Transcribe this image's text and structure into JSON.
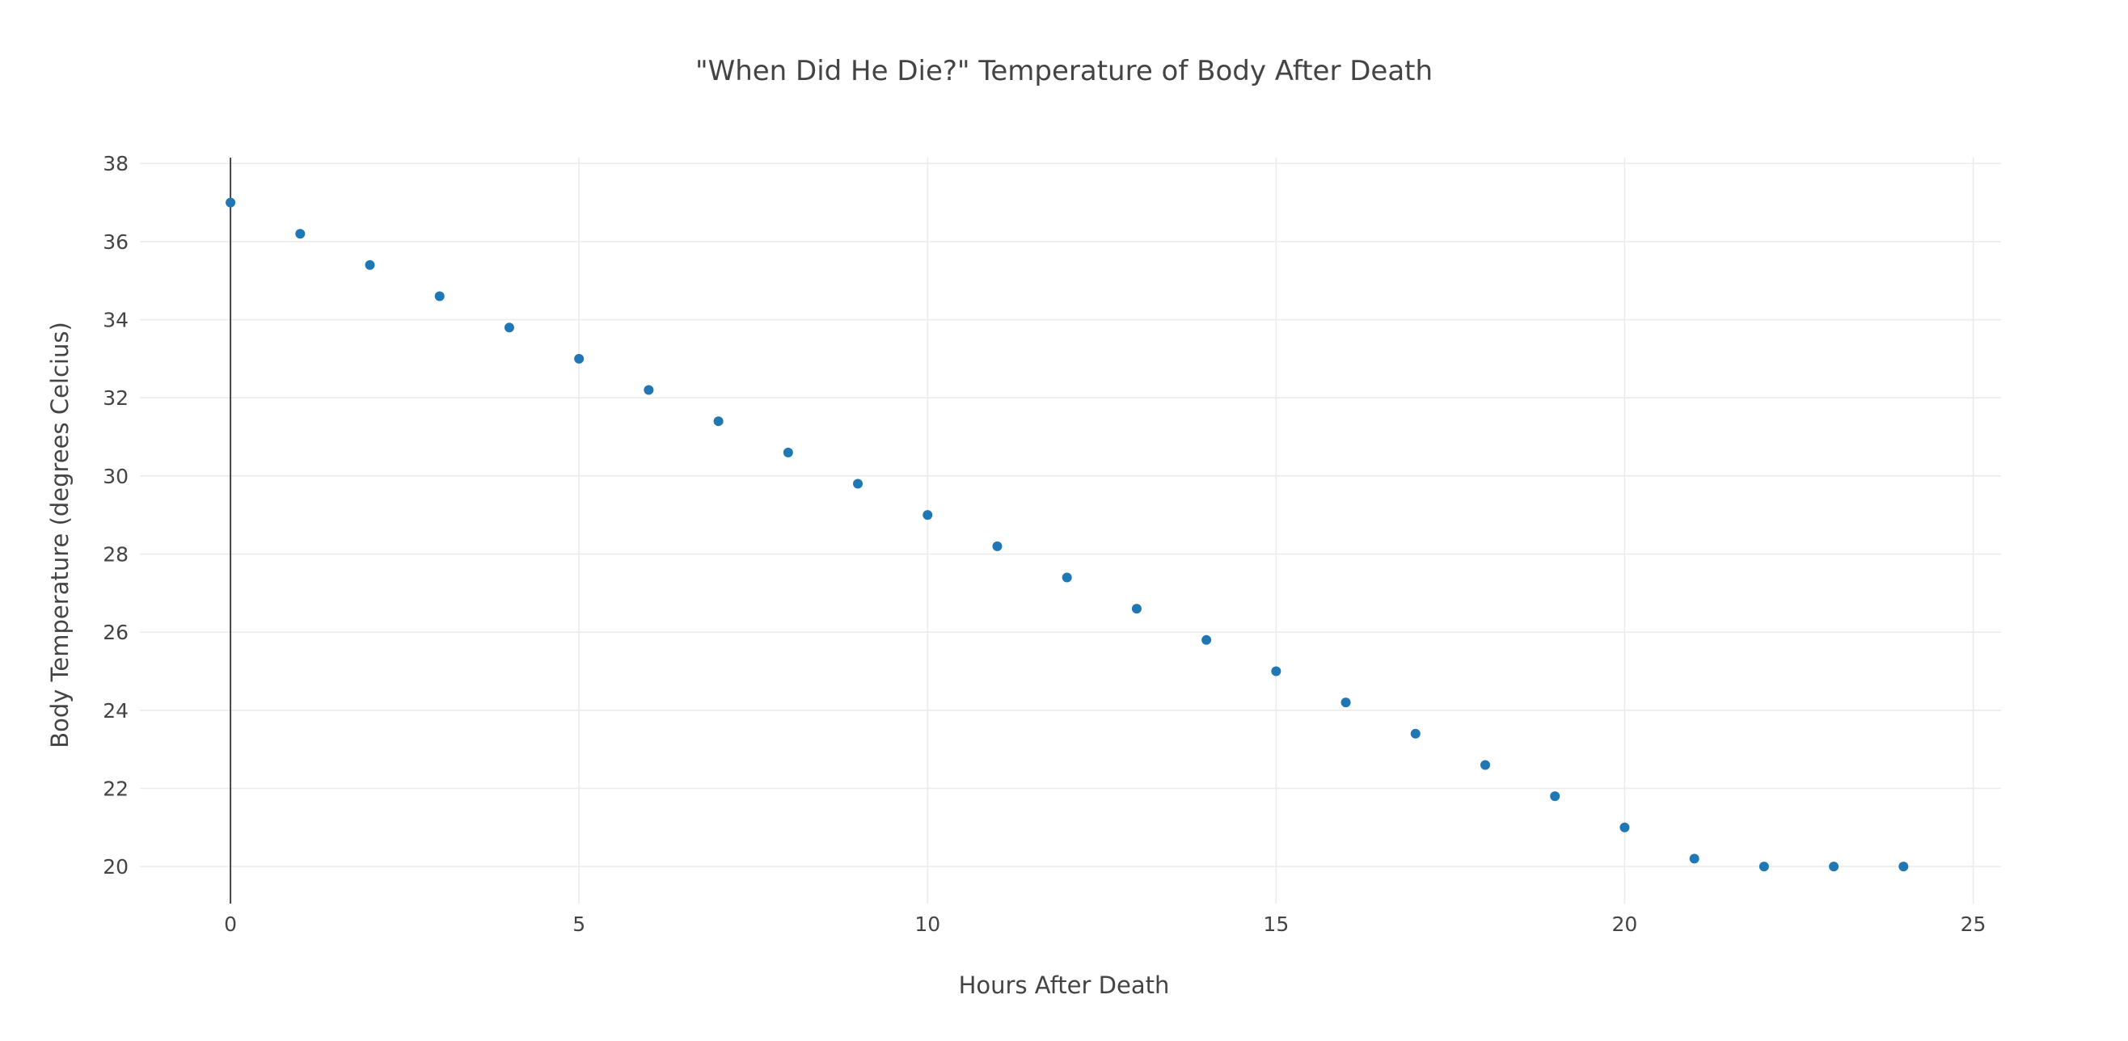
{
  "chart_data": {
    "type": "scatter",
    "title": "\"When Did He Die?\" Temperature of Body After Death",
    "xlabel": "Hours After Death",
    "ylabel": "Body Temperature (degrees Celcius)",
    "xlim": [
      -1.3,
      25.4
    ],
    "ylim": [
      19.05,
      38.15
    ],
    "xticks": [
      0,
      5,
      10,
      15,
      20,
      25
    ],
    "yticks": [
      20,
      22,
      24,
      26,
      28,
      30,
      32,
      34,
      36,
      38
    ],
    "grid": true,
    "series_color": "#1f77b4",
    "series": [
      {
        "x": [
          0,
          1,
          2,
          3,
          4,
          5,
          6,
          7,
          8,
          9,
          10,
          11,
          12,
          13,
          14,
          15,
          16,
          17,
          18,
          19,
          20,
          21,
          22,
          23,
          24
        ],
        "y": [
          37,
          36.2,
          35.4,
          34.6,
          33.8,
          33,
          32.2,
          31.4,
          30.6,
          29.8,
          29,
          28.2,
          27.4,
          26.6,
          25.8,
          25,
          24.2,
          23.4,
          22.6,
          21.8,
          21,
          20.2,
          20,
          20,
          20
        ]
      }
    ]
  }
}
